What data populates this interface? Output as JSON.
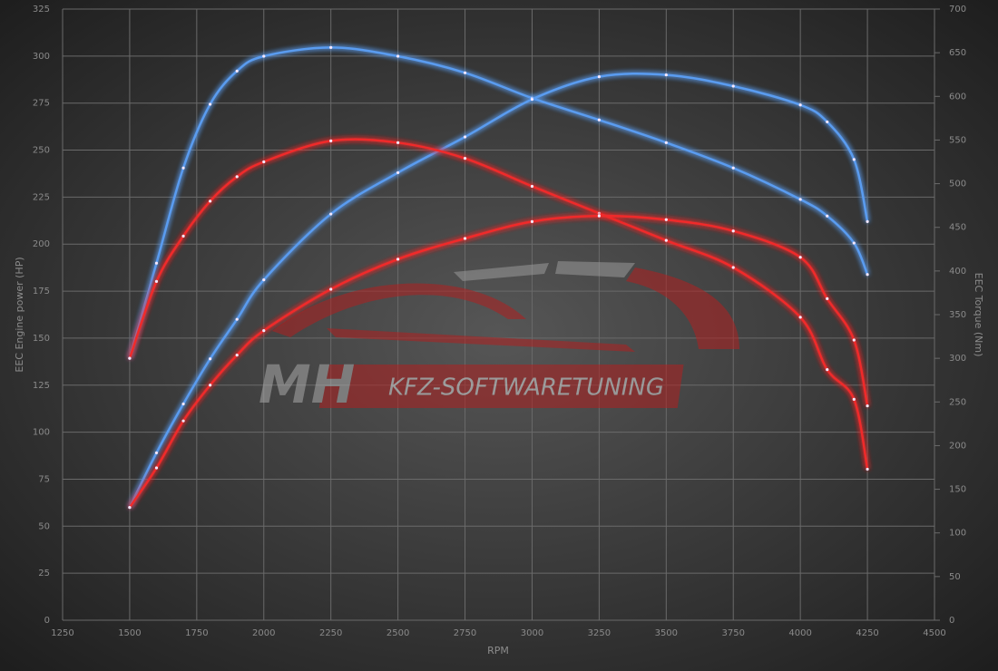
{
  "chart_data": {
    "type": "line",
    "xlabel": "RPM",
    "ylabel": "EEC Engine power (HP)",
    "y2label": "EEC Torque (Nm)",
    "watermark": {
      "brand": "MH",
      "text": "KFZ-SOFTWARETUNING"
    },
    "grid": true,
    "xlim": [
      1250,
      4500
    ],
    "xticks": [
      1250,
      1500,
      1750,
      2000,
      2250,
      2500,
      2750,
      3000,
      3250,
      3500,
      3750,
      4000,
      4250,
      4500
    ],
    "ylim": [
      0,
      325
    ],
    "yticks": [
      0,
      25,
      50,
      75,
      100,
      125,
      150,
      175,
      200,
      225,
      250,
      275,
      300,
      325
    ],
    "y2lim": [
      0,
      700
    ],
    "y2ticks": [
      0,
      50,
      100,
      150,
      200,
      250,
      300,
      350,
      400,
      450,
      500,
      550,
      600,
      650,
      700
    ],
    "x": [
      1500,
      1600,
      1700,
      1800,
      1900,
      2000,
      2250,
      2500,
      2750,
      3000,
      3250,
      3500,
      3750,
      4000,
      4100,
      4200,
      4250
    ],
    "series": [
      {
        "color": "#5a9cf0",
        "axis": "y2",
        "values": [
          300,
          409,
          518,
          591,
          629,
          646,
          656,
          646,
          627,
          598,
          573,
          547,
          518,
          482,
          463,
          432,
          396
        ]
      },
      {
        "color": "#5a9cf0",
        "values": [
          60,
          89,
          115,
          139,
          160,
          181,
          216,
          238,
          257,
          277,
          289,
          290,
          284,
          274,
          265,
          245,
          212
        ]
      },
      {
        "color": "#f02a2a",
        "axis": "y2",
        "values": [
          300,
          388,
          440,
          480,
          508,
          525,
          549,
          547,
          529,
          497,
          466,
          435,
          404,
          347,
          287,
          253,
          173
        ]
      },
      {
        "color": "#f02a2a",
        "values": [
          60,
          81,
          106,
          125,
          141,
          154,
          176,
          192,
          203,
          212,
          215,
          213,
          207,
          193,
          171,
          149,
          114
        ]
      }
    ]
  }
}
